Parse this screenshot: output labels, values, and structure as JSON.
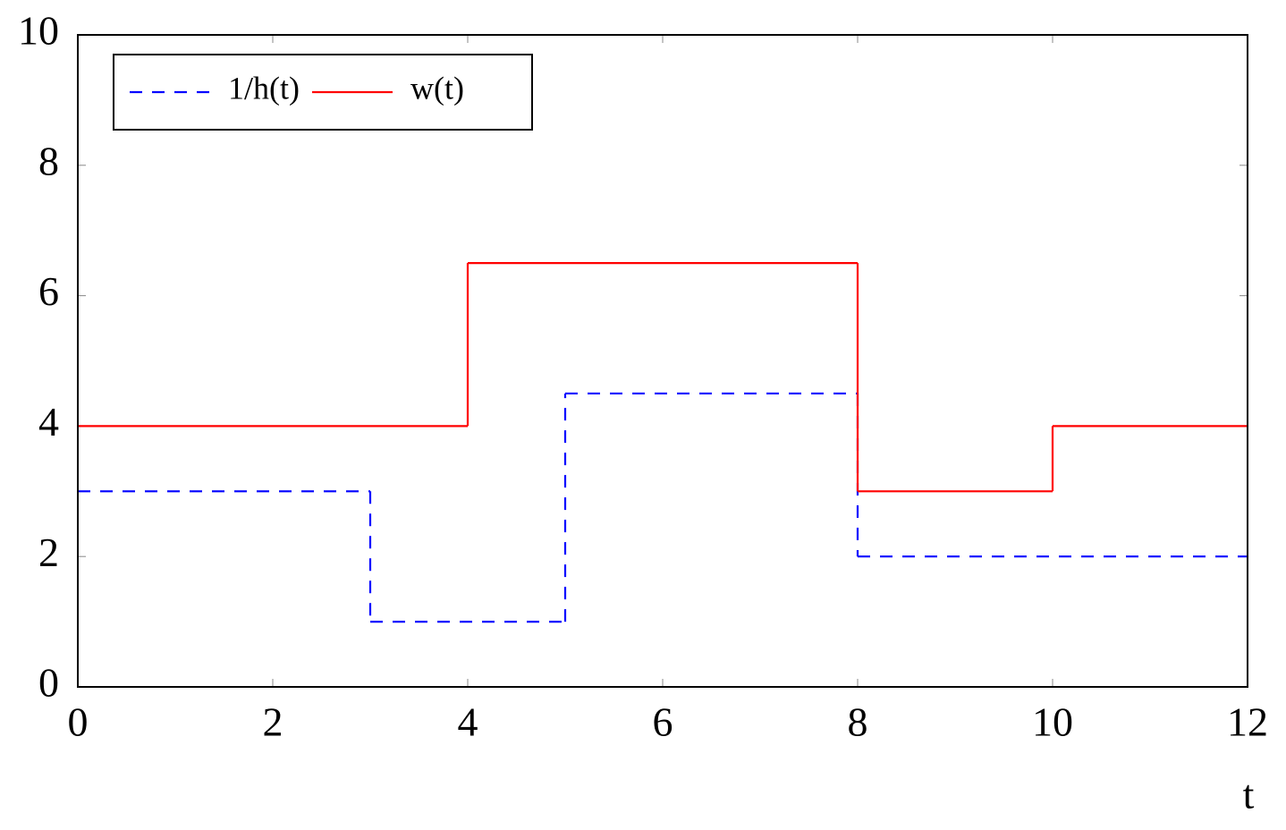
{
  "chart_data": {
    "type": "step",
    "x_label": "t",
    "xlim": [
      0,
      12
    ],
    "xticks": [
      0,
      2,
      4,
      6,
      8,
      10,
      12
    ],
    "ylim": [
      0,
      10
    ],
    "yticks": [
      0,
      2,
      4,
      6,
      8,
      10
    ],
    "legend": "upper left",
    "series": [
      {
        "name": "1/h(t)",
        "color": "#0000ff",
        "dash": true,
        "x": [
          0,
          3,
          5,
          8
        ],
        "values": [
          3,
          1,
          4.5,
          2
        ]
      },
      {
        "name": "w(t)",
        "color": "#ff0000",
        "dash": false,
        "x": [
          0,
          4,
          8,
          10
        ],
        "values": [
          4,
          6.5,
          3,
          4
        ]
      }
    ]
  }
}
